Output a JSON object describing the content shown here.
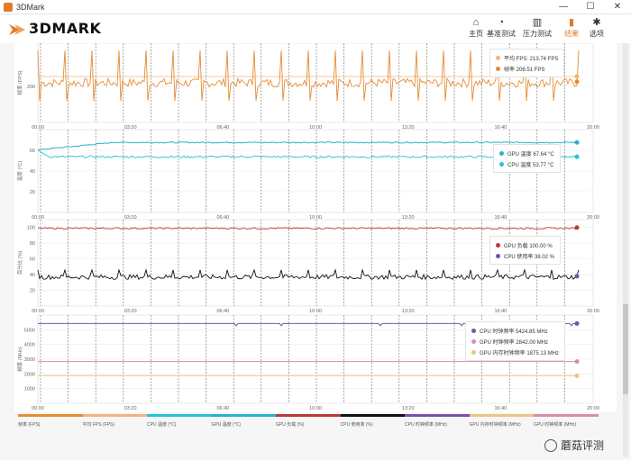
{
  "window": {
    "title": "3DMark",
    "minimize": "—",
    "maximize": "☐",
    "close": "✕"
  },
  "header": {
    "logo_text": "3DMARK",
    "nav": [
      {
        "label": "主页",
        "icon": "home-icon",
        "glyph": "⌂"
      },
      {
        "label": "基准测试",
        "icon": "gauge-icon",
        "glyph": "◔"
      },
      {
        "label": "压力测试",
        "icon": "bars-icon",
        "glyph": "▥"
      },
      {
        "label": "结果",
        "icon": "chart-icon",
        "glyph": "▮"
      },
      {
        "label": "选项",
        "icon": "gear-icon",
        "glyph": "✱"
      }
    ],
    "active": 3
  },
  "time_ticks": [
    "00:00",
    "03:20",
    "06:40",
    "10:00",
    "13:20",
    "16:40",
    "20:00"
  ],
  "colors": {
    "fps": "#e58c35",
    "fps_avg": "#f2b47a",
    "cpu_temp": "#26c3d6",
    "gpu_temp": "#2ab1cf",
    "gpu_load": "#b83a3a",
    "cpu_load": "#111111",
    "cpu_clock": "#7b4fb0",
    "gpu_clock": "#d78db0",
    "gpu_mem_clock": "#e8c87a"
  },
  "charts": [
    {
      "id": "fps",
      "ylabel": "帧率 (FPS)",
      "yticks": [
        "200"
      ],
      "legend": [
        {
          "label": "平均 FPS: 213.74 FPS",
          "color": "#f2b47a"
        },
        {
          "label": "帧率 206.51 FPS",
          "color": "#e58c35"
        }
      ]
    },
    {
      "id": "temp",
      "ylabel": "温度 (°C)",
      "yticks": [
        "60",
        "40",
        "20"
      ],
      "legend": [
        {
          "label": "GPU 温度 67.64 °C",
          "color": "#2ab1cf"
        },
        {
          "label": "CPU 温度 53.77 °C",
          "color": "#26c3d6"
        }
      ]
    },
    {
      "id": "load",
      "ylabel": "百分比 (%)",
      "yticks": [
        "100",
        "80",
        "60",
        "40",
        "20"
      ],
      "legend": [
        {
          "label": "GPU 负载 100.00 %",
          "color": "#b83a3a"
        },
        {
          "label": "CPU 使用率 38.02 %",
          "color": "#7b4fb0"
        }
      ]
    },
    {
      "id": "clock",
      "ylabel": "频率 (MHz)",
      "yticks": [
        "5000",
        "4000",
        "3000",
        "2000",
        "1000"
      ],
      "legend": [
        {
          "label": "CPU 时钟频率 5424.85 MHz",
          "color": "#7b4fb0"
        },
        {
          "label": "GPU 时钟频率 2842.00 MHz",
          "color": "#d78db0"
        },
        {
          "label": "GPU 内存时钟频率 1875.13 MHz",
          "color": "#e8c87a"
        }
      ]
    }
  ],
  "bottom_legend": [
    {
      "label": "帧率 (FPS)",
      "color": "#e58c35"
    },
    {
      "label": "平均 FPS (FPS)",
      "color": "#f2b47a"
    },
    {
      "label": "CPU 温度 (°C)",
      "color": "#26c3d6"
    },
    {
      "label": "GPU 温度 (°C)",
      "color": "#2ab1cf"
    },
    {
      "label": "GPU 负载 (%)",
      "color": "#b83a3a"
    },
    {
      "label": "CPU 使用率 (%)",
      "color": "#111111"
    },
    {
      "label": "CPU 时钟频率 (MHz)",
      "color": "#7b4fb0"
    },
    {
      "label": "GPU 内存时钟频率 (MHz)",
      "color": "#e8c87a"
    },
    {
      "label": "GPU 时钟频率 (MHz)",
      "color": "#d78db0"
    }
  ],
  "watermark": "蘑菇评测",
  "chart_data": [
    {
      "type": "line",
      "title": "",
      "xlabel": "",
      "ylabel": "帧率 (FPS)",
      "x_range": [
        "00:00",
        "20:00"
      ],
      "ylim": [
        150,
        260
      ],
      "series": [
        {
          "name": "平均 FPS",
          "values": [
            213.74
          ]
        },
        {
          "name": "帧率",
          "values": [
            206.51
          ]
        }
      ]
    },
    {
      "type": "line",
      "title": "",
      "xlabel": "",
      "ylabel": "温度 (°C)",
      "x_range": [
        "00:00",
        "20:00"
      ],
      "ylim": [
        0,
        80
      ],
      "series": [
        {
          "name": "GPU 温度",
          "values": [
            60,
            64,
            66,
            67,
            67.5,
            67.6,
            67.64
          ]
        },
        {
          "name": "CPU 温度",
          "values": [
            55,
            54,
            54,
            53.8,
            53.8,
            53.7,
            53.77
          ]
        }
      ]
    },
    {
      "type": "line",
      "title": "",
      "xlabel": "",
      "ylabel": "百分比 (%)",
      "x_range": [
        "00:00",
        "20:00"
      ],
      "ylim": [
        0,
        110
      ],
      "series": [
        {
          "name": "GPU 负载",
          "values": [
            100,
            100,
            100,
            100,
            100,
            100,
            100
          ]
        },
        {
          "name": "CPU 使用率",
          "values": [
            38,
            37,
            38,
            38,
            39,
            37,
            38.02
          ]
        }
      ]
    },
    {
      "type": "line",
      "title": "",
      "xlabel": "",
      "ylabel": "频率 (MHz)",
      "x_range": [
        "00:00",
        "20:00"
      ],
      "ylim": [
        0,
        6000
      ],
      "series": [
        {
          "name": "CPU 时钟频率",
          "values": [
            5424.85,
            5424.85,
            5424.85,
            5424.85,
            5424.85,
            5424.85,
            5424.85
          ]
        },
        {
          "name": "GPU 时钟频率",
          "values": [
            2842,
            2842,
            2842,
            2842,
            2842,
            2842,
            2842
          ]
        },
        {
          "name": "GPU 内存时钟频率",
          "values": [
            1875.13,
            1875.13,
            1875.13,
            1875.13,
            1875.13,
            1875.13,
            1875.13
          ]
        }
      ]
    }
  ]
}
